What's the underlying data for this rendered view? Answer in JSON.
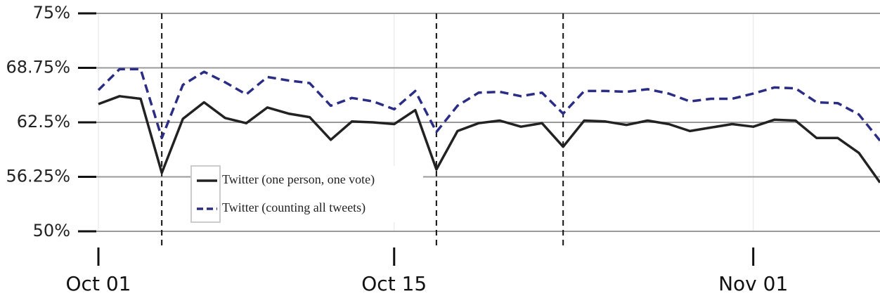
{
  "chart_data": {
    "type": "line",
    "x": [
      "Oct 01",
      "Oct 02",
      "Oct 03",
      "Oct 04",
      "Oct 05",
      "Oct 06",
      "Oct 07",
      "Oct 08",
      "Oct 09",
      "Oct 10",
      "Oct 11",
      "Oct 12",
      "Oct 13",
      "Oct 14",
      "Oct 15",
      "Oct 16",
      "Oct 17",
      "Oct 18",
      "Oct 19",
      "Oct 20",
      "Oct 21",
      "Oct 22",
      "Oct 23",
      "Oct 24",
      "Oct 25",
      "Oct 26",
      "Oct 27",
      "Oct 28",
      "Oct 29",
      "Oct 30",
      "Oct 31",
      "Nov 01",
      "Nov 02",
      "Nov 03",
      "Nov 04",
      "Nov 05",
      "Nov 06",
      "Nov 07"
    ],
    "series": [
      {
        "name": "Twitter (one person, one vote)",
        "color": "#222222",
        "dash": false,
        "values": [
          64.6,
          65.5,
          65.2,
          56.7,
          62.9,
          64.8,
          63.0,
          62.4,
          64.2,
          63.5,
          63.1,
          60.5,
          62.6,
          62.5,
          62.3,
          63.9,
          57.1,
          61.5,
          62.4,
          62.7,
          62.0,
          62.4,
          59.7,
          62.7,
          62.6,
          62.2,
          62.7,
          62.3,
          61.5,
          61.9,
          62.3,
          62.0,
          62.8,
          62.7,
          60.7,
          60.7,
          59.0,
          55.6
        ]
      },
      {
        "name": "Twitter (counting all tweets)",
        "color": "#2b2d84",
        "dash": true,
        "values": [
          66.2,
          68.6,
          68.6,
          60.7,
          66.8,
          68.3,
          67.1,
          65.7,
          67.7,
          67.3,
          67.0,
          64.4,
          65.3,
          64.9,
          64.0,
          66.1,
          61.4,
          64.4,
          65.9,
          66.0,
          65.5,
          65.9,
          63.5,
          66.1,
          66.1,
          66.0,
          66.3,
          65.8,
          64.9,
          65.2,
          65.2,
          65.8,
          66.5,
          66.4,
          64.8,
          64.7,
          63.4,
          60.4
        ]
      }
    ],
    "xlim": [
      "Oct 01",
      "Nov 07"
    ],
    "xticks": [
      "Oct 01",
      "Oct 15",
      "Nov 01"
    ],
    "vlines": [
      "Oct 04",
      "Oct 17",
      "Oct 23"
    ],
    "ylim": [
      50,
      75
    ],
    "yticks": [
      {
        "value": 50,
        "label": "50%"
      },
      {
        "value": 56.25,
        "label": "56.25%"
      },
      {
        "value": 62.5,
        "label": "62.5%"
      },
      {
        "value": 68.75,
        "label": "68.75%"
      },
      {
        "value": 75,
        "label": "75%"
      }
    ],
    "grid": true,
    "legend": "lower-left"
  }
}
